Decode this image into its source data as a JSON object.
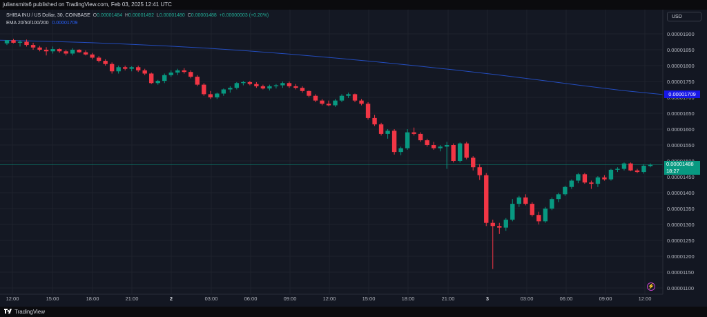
{
  "header": {
    "publish_info": "juliansmits6 published on TradingView.com, Feb 03, 2025 12:41 UTC"
  },
  "legend": {
    "symbol": "SHIBA INU / US Dollar, 30, COINBASE",
    "o_label": "O",
    "o_value": "0.00001484",
    "h_label": "H",
    "h_value": "0.00001492",
    "l_label": "L",
    "l_value": "0.00001480",
    "c_label": "C",
    "c_value": "0.00001488",
    "change": "+0.00000003 (+0.20%)",
    "ema_label": "EMA 20/50/100/200",
    "ema_value": "0.00001709"
  },
  "currency_button": "USD",
  "price_axis": [
    "0.00001900",
    "0.00001850",
    "0.00001800",
    "0.00001750",
    "0.00001700",
    "0.00001650",
    "0.00001600",
    "0.00001550",
    "0.00001500",
    "0.00001450",
    "0.00001400",
    "0.00001350",
    "0.00001300",
    "0.00001250",
    "0.00001200",
    "0.00001150",
    "0.00001100"
  ],
  "time_axis": [
    "12:00",
    "15:00",
    "18:00",
    "21:00",
    "2",
    "03:00",
    "06:00",
    "09:00",
    "12:00",
    "15:00",
    "18:00",
    "21:00",
    "3",
    "03:00",
    "06:00",
    "09:00",
    "12:00"
  ],
  "ema_tag": "0.00001709",
  "last_price": {
    "price": "0.00001488",
    "countdown": "18:27"
  },
  "colors": {
    "up": "#089981",
    "down": "#f23645",
    "ema": "#2962ff",
    "background": "#131722"
  },
  "footer": {
    "brand": "TradingView"
  },
  "icons": {
    "alert": "lightning-icon",
    "logo": "tradingview-logo-icon"
  },
  "chart_data": {
    "type": "candlestick",
    "interval": "30",
    "symbol": "SHIBA INU / US Dollar",
    "exchange": "COINBASE",
    "ylim": [
      1.085e-05,
      1.925e-05
    ],
    "x_ticks": [
      "12:00",
      "15:00",
      "18:00",
      "21:00",
      "2",
      "03:00",
      "06:00",
      "09:00",
      "12:00",
      "15:00",
      "18:00",
      "21:00",
      "3",
      "03:00",
      "06:00",
      "09:00",
      "12:00"
    ],
    "ohlc": [
      [
        1.87,
        1.88,
        1.865,
        1.88
      ],
      [
        1.88,
        1.884,
        1.87,
        1.872
      ],
      [
        1.872,
        1.88,
        1.86,
        1.875
      ],
      [
        1.875,
        1.882,
        1.86,
        1.865
      ],
      [
        1.865,
        1.872,
        1.85,
        1.857
      ],
      [
        1.857,
        1.862,
        1.845,
        1.85
      ],
      [
        1.85,
        1.858,
        1.832,
        1.845
      ],
      [
        1.845,
        1.86,
        1.838,
        1.852
      ],
      [
        1.852,
        1.855,
        1.84,
        1.845
      ],
      [
        1.845,
        1.85,
        1.832,
        1.838
      ],
      [
        1.838,
        1.855,
        1.832,
        1.85
      ],
      [
        1.85,
        1.852,
        1.84,
        1.842
      ],
      [
        1.842,
        1.848,
        1.832,
        1.835
      ],
      [
        1.835,
        1.84,
        1.82,
        1.825
      ],
      [
        1.825,
        1.83,
        1.81,
        1.815
      ],
      [
        1.815,
        1.82,
        1.8,
        1.805
      ],
      [
        1.805,
        1.81,
        1.775,
        1.782
      ],
      [
        1.782,
        1.8,
        1.775,
        1.795
      ],
      [
        1.795,
        1.8,
        1.785,
        1.79
      ],
      [
        1.79,
        1.798,
        1.782,
        1.795
      ],
      [
        1.795,
        1.8,
        1.78,
        1.785
      ],
      [
        1.785,
        1.79,
        1.77,
        1.775
      ],
      [
        1.775,
        1.778,
        1.742,
        1.745
      ],
      [
        1.745,
        1.755,
        1.74,
        1.752
      ],
      [
        1.752,
        1.775,
        1.745,
        1.77
      ],
      [
        1.77,
        1.785,
        1.765,
        1.778
      ],
      [
        1.778,
        1.79,
        1.77,
        1.785
      ],
      [
        1.785,
        1.792,
        1.775,
        1.78
      ],
      [
        1.78,
        1.785,
        1.76,
        1.765
      ],
      [
        1.765,
        1.77,
        1.735,
        1.74
      ],
      [
        1.74,
        1.745,
        1.705,
        1.71
      ],
      [
        1.71,
        1.72,
        1.695,
        1.7
      ],
      [
        1.7,
        1.715,
        1.695,
        1.712
      ],
      [
        1.712,
        1.728,
        1.705,
        1.725
      ],
      [
        1.725,
        1.735,
        1.715,
        1.73
      ],
      [
        1.73,
        1.748,
        1.725,
        1.745
      ],
      [
        1.745,
        1.752,
        1.738,
        1.748
      ],
      [
        1.748,
        1.752,
        1.738,
        1.742
      ],
      [
        1.742,
        1.748,
        1.73,
        1.735
      ],
      [
        1.735,
        1.74,
        1.725,
        1.728
      ],
      [
        1.728,
        1.74,
        1.722,
        1.735
      ],
      [
        1.735,
        1.742,
        1.728,
        1.738
      ],
      [
        1.738,
        1.75,
        1.73,
        1.745
      ],
      [
        1.745,
        1.75,
        1.73,
        1.735
      ],
      [
        1.735,
        1.742,
        1.725,
        1.73
      ],
      [
        1.73,
        1.735,
        1.715,
        1.72
      ],
      [
        1.72,
        1.722,
        1.7,
        1.705
      ],
      [
        1.705,
        1.71,
        1.685,
        1.69
      ],
      [
        1.69,
        1.695,
        1.675,
        1.68
      ],
      [
        1.68,
        1.69,
        1.672,
        1.675
      ],
      [
        1.675,
        1.695,
        1.67,
        1.69
      ],
      [
        1.69,
        1.71,
        1.685,
        1.705
      ],
      [
        1.705,
        1.715,
        1.698,
        1.71
      ],
      [
        1.71,
        1.712,
        1.685,
        1.69
      ],
      [
        1.69,
        1.695,
        1.675,
        1.68
      ],
      [
        1.68,
        1.685,
        1.63,
        1.635
      ],
      [
        1.635,
        1.645,
        1.61,
        1.615
      ],
      [
        1.615,
        1.62,
        1.58,
        1.585
      ],
      [
        1.585,
        1.6,
        1.57,
        1.595
      ],
      [
        1.595,
        1.6,
        1.52,
        1.528
      ],
      [
        1.528,
        1.545,
        1.518,
        1.54
      ],
      [
        1.54,
        1.6,
        1.535,
        1.59
      ],
      [
        1.59,
        1.605,
        1.58,
        1.585
      ],
      [
        1.585,
        1.59,
        1.56,
        1.565
      ],
      [
        1.565,
        1.57,
        1.545,
        1.55
      ],
      [
        1.55,
        1.56,
        1.535,
        1.54
      ],
      [
        1.54,
        1.55,
        1.53,
        1.545
      ],
      [
        1.545,
        1.56,
        1.475,
        1.55
      ],
      [
        1.55,
        1.555,
        1.495,
        1.5
      ],
      [
        1.5,
        1.558,
        1.495,
        1.555
      ],
      [
        1.555,
        1.56,
        1.505,
        1.51
      ],
      [
        1.51,
        1.515,
        1.47,
        1.48
      ],
      [
        1.48,
        1.49,
        1.44,
        1.455
      ],
      [
        1.455,
        1.462,
        1.295,
        1.305
      ],
      [
        1.305,
        1.315,
        1.16,
        1.295
      ],
      [
        1.295,
        1.305,
        1.27,
        1.29
      ],
      [
        1.29,
        1.32,
        1.28,
        1.315
      ],
      [
        1.315,
        1.38,
        1.31,
        1.365
      ],
      [
        1.365,
        1.39,
        1.355,
        1.385
      ],
      [
        1.385,
        1.395,
        1.36,
        1.365
      ],
      [
        1.365,
        1.37,
        1.325,
        1.33
      ],
      [
        1.33,
        1.34,
        1.3,
        1.31
      ],
      [
        1.31,
        1.355,
        1.305,
        1.35
      ],
      [
        1.35,
        1.385,
        1.345,
        1.38
      ],
      [
        1.38,
        1.4,
        1.37,
        1.395
      ],
      [
        1.395,
        1.422,
        1.39,
        1.418
      ],
      [
        1.418,
        1.442,
        1.412,
        1.438
      ],
      [
        1.438,
        1.462,
        1.43,
        1.458
      ],
      [
        1.458,
        1.462,
        1.428,
        1.432
      ],
      [
        1.432,
        1.438,
        1.412,
        1.428
      ],
      [
        1.428,
        1.452,
        1.418,
        1.448
      ],
      [
        1.448,
        1.455,
        1.438,
        1.442
      ],
      [
        1.442,
        1.475,
        1.438,
        1.472
      ],
      [
        1.472,
        1.48,
        1.465,
        1.475
      ],
      [
        1.475,
        1.495,
        1.47,
        1.492
      ],
      [
        1.492,
        1.495,
        1.468,
        1.47
      ],
      [
        1.47,
        1.475,
        1.462,
        1.465
      ],
      [
        1.465,
        1.49,
        1.46,
        1.485
      ],
      [
        1.484,
        1.492,
        1.48,
        1.488
      ]
    ],
    "ema": [
      1.88,
      1.877,
      1.873,
      1.868,
      1.862,
      1.855,
      1.846,
      1.836,
      1.825,
      1.813,
      1.8,
      1.786,
      1.771,
      1.755,
      1.738,
      1.722,
      1.709
    ]
  }
}
